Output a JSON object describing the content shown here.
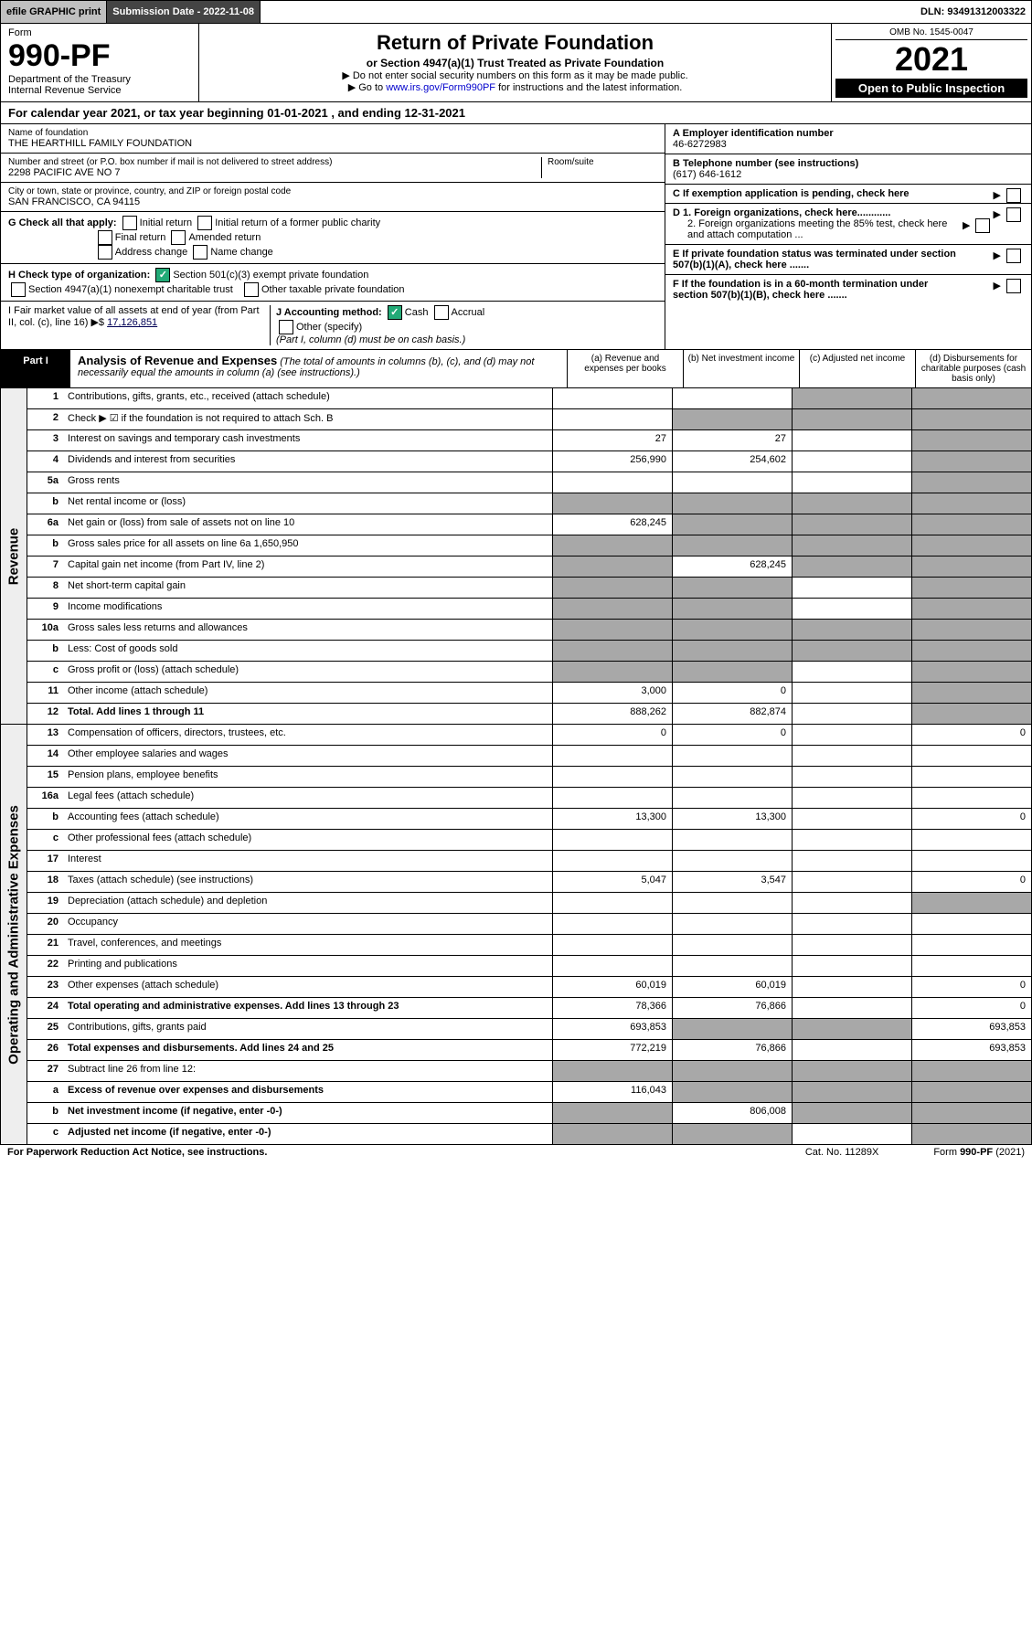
{
  "topbar": {
    "efile": "efile GRAPHIC print",
    "submission": "Submission Date - 2022-11-08",
    "dln": "DLN: 93491312003322"
  },
  "header": {
    "form_label": "Form",
    "form_num": "990-PF",
    "dept1": "Department of the Treasury",
    "dept2": "Internal Revenue Service",
    "title": "Return of Private Foundation",
    "sub1": "or Section 4947(a)(1) Trust Treated as Private Foundation",
    "sub2a": "▶ Do not enter social security numbers on this form as it may be made public.",
    "sub2b": "▶ Go to www.irs.gov/Form990PF for instructions and the latest information.",
    "omb": "OMB No. 1545-0047",
    "year": "2021",
    "open": "Open to Public Inspection"
  },
  "calyear": "For calendar year 2021, or tax year beginning 01-01-2021              , and ending 12-31-2021",
  "info": {
    "name_label": "Name of foundation",
    "name": "THE HEARTHILL FAMILY FOUNDATION",
    "addr_label": "Number and street (or P.O. box number if mail is not delivered to street address)",
    "addr": "2298 PACIFIC AVE NO 7",
    "room_label": "Room/suite",
    "city_label": "City or town, state or province, country, and ZIP or foreign postal code",
    "city": "SAN FRANCISCO, CA  94115",
    "A_label": "A Employer identification number",
    "A_val": "46-6272983",
    "B_label": "B Telephone number (see instructions)",
    "B_val": "(617) 646-1612",
    "C_label": "C If exemption application is pending, check here",
    "G_label": "G Check all that apply:",
    "G_opts": [
      "Initial return",
      "Initial return of a former public charity",
      "Final return",
      "Amended return",
      "Address change",
      "Name change"
    ],
    "D1": "D 1. Foreign organizations, check here............",
    "D2": "2. Foreign organizations meeting the 85% test, check here and attach computation ...",
    "H_label": "H Check type of organization:",
    "H1": "Section 501(c)(3) exempt private foundation",
    "H2": "Section 4947(a)(1) nonexempt charitable trust",
    "H3": "Other taxable private foundation",
    "E_label": "E If private foundation status was terminated under section 507(b)(1)(A), check here .......",
    "I_label": "I Fair market value of all assets at end of year (from Part II, col. (c), line 16) ▶$",
    "I_val": "17,126,851",
    "J_label": "J Accounting method:",
    "J_cash": "Cash",
    "J_accrual": "Accrual",
    "J_other": "Other (specify)",
    "J_note": "(Part I, column (d) must be on cash basis.)",
    "F_label": "F If the foundation is in a 60-month termination under section 507(b)(1)(B), check here ......."
  },
  "part1": {
    "label": "Part I",
    "title": "Analysis of Revenue and Expenses",
    "subtitle": "(The total of amounts in columns (b), (c), and (d) may not necessarily equal the amounts in column (a) (see instructions).)",
    "col_a": "(a) Revenue and expenses per books",
    "col_b": "(b) Net investment income",
    "col_c": "(c) Adjusted net income",
    "col_d": "(d) Disbursements for charitable purposes (cash basis only)"
  },
  "side": {
    "rev": "Revenue",
    "exp": "Operating and Administrative Expenses"
  },
  "rows": [
    {
      "n": "1",
      "d": "Contributions, gifts, grants, etc., received (attach schedule)",
      "a": "",
      "b": "",
      "c": "g",
      "dd": "g"
    },
    {
      "n": "2",
      "d": "Check ▶ ☑ if the foundation is not required to attach Sch. B",
      "dots": true,
      "a": "",
      "b": "g",
      "c": "g",
      "dd": "g"
    },
    {
      "n": "3",
      "d": "Interest on savings and temporary cash investments",
      "a": "27",
      "b": "27",
      "c": "",
      "dd": "g"
    },
    {
      "n": "4",
      "d": "Dividends and interest from securities",
      "dots": true,
      "a": "256,990",
      "b": "254,602",
      "c": "",
      "dd": "g"
    },
    {
      "n": "5a",
      "d": "Gross rents",
      "dots": true,
      "a": "",
      "b": "",
      "c": "",
      "dd": "g"
    },
    {
      "n": "b",
      "d": "Net rental income or (loss)",
      "a": "g",
      "b": "g",
      "c": "g",
      "dd": "g"
    },
    {
      "n": "6a",
      "d": "Net gain or (loss) from sale of assets not on line 10",
      "a": "628,245",
      "b": "g",
      "c": "g",
      "dd": "g"
    },
    {
      "n": "b",
      "d": "Gross sales price for all assets on line 6a           1,650,950",
      "a": "g",
      "b": "g",
      "c": "g",
      "dd": "g"
    },
    {
      "n": "7",
      "d": "Capital gain net income (from Part IV, line 2)",
      "dots": true,
      "a": "g",
      "b": "628,245",
      "c": "g",
      "dd": "g"
    },
    {
      "n": "8",
      "d": "Net short-term capital gain",
      "dots": true,
      "a": "g",
      "b": "g",
      "c": "",
      "dd": "g"
    },
    {
      "n": "9",
      "d": "Income modifications",
      "dots": true,
      "a": "g",
      "b": "g",
      "c": "",
      "dd": "g"
    },
    {
      "n": "10a",
      "d": "Gross sales less returns and allowances",
      "a": "g",
      "b": "g",
      "c": "g",
      "dd": "g"
    },
    {
      "n": "b",
      "d": "Less: Cost of goods sold",
      "dots": true,
      "a": "g",
      "b": "g",
      "c": "g",
      "dd": "g"
    },
    {
      "n": "c",
      "d": "Gross profit or (loss) (attach schedule)",
      "dots": true,
      "a": "g",
      "b": "g",
      "c": "",
      "dd": "g"
    },
    {
      "n": "11",
      "d": "Other income (attach schedule)",
      "dots": true,
      "a": "3,000",
      "b": "0",
      "c": "",
      "dd": "g"
    },
    {
      "n": "12",
      "d": "Total. Add lines 1 through 11",
      "dots": true,
      "bold": true,
      "a": "888,262",
      "b": "882,874",
      "c": "",
      "dd": "g"
    },
    {
      "n": "13",
      "d": "Compensation of officers, directors, trustees, etc.",
      "a": "0",
      "b": "0",
      "c": "",
      "dd": "0"
    },
    {
      "n": "14",
      "d": "Other employee salaries and wages",
      "dots": true,
      "a": "",
      "b": "",
      "c": "",
      "dd": ""
    },
    {
      "n": "15",
      "d": "Pension plans, employee benefits",
      "dots": true,
      "a": "",
      "b": "",
      "c": "",
      "dd": ""
    },
    {
      "n": "16a",
      "d": "Legal fees (attach schedule)",
      "dots": true,
      "a": "",
      "b": "",
      "c": "",
      "dd": ""
    },
    {
      "n": "b",
      "d": "Accounting fees (attach schedule)",
      "dots": true,
      "a": "13,300",
      "b": "13,300",
      "c": "",
      "dd": "0"
    },
    {
      "n": "c",
      "d": "Other professional fees (attach schedule)",
      "dots": true,
      "a": "",
      "b": "",
      "c": "",
      "dd": ""
    },
    {
      "n": "17",
      "d": "Interest",
      "dots": true,
      "a": "",
      "b": "",
      "c": "",
      "dd": ""
    },
    {
      "n": "18",
      "d": "Taxes (attach schedule) (see instructions)",
      "dots": true,
      "a": "5,047",
      "b": "3,547",
      "c": "",
      "dd": "0"
    },
    {
      "n": "19",
      "d": "Depreciation (attach schedule) and depletion",
      "dots": true,
      "a": "",
      "b": "",
      "c": "",
      "dd": "g"
    },
    {
      "n": "20",
      "d": "Occupancy",
      "dots": true,
      "a": "",
      "b": "",
      "c": "",
      "dd": ""
    },
    {
      "n": "21",
      "d": "Travel, conferences, and meetings",
      "dots": true,
      "a": "",
      "b": "",
      "c": "",
      "dd": ""
    },
    {
      "n": "22",
      "d": "Printing and publications",
      "dots": true,
      "a": "",
      "b": "",
      "c": "",
      "dd": ""
    },
    {
      "n": "23",
      "d": "Other expenses (attach schedule)",
      "dots": true,
      "a": "60,019",
      "b": "60,019",
      "c": "",
      "dd": "0"
    },
    {
      "n": "24",
      "d": "Total operating and administrative expenses. Add lines 13 through 23",
      "dots": true,
      "bold": true,
      "a": "78,366",
      "b": "76,866",
      "c": "",
      "dd": "0"
    },
    {
      "n": "25",
      "d": "Contributions, gifts, grants paid",
      "dots": true,
      "a": "693,853",
      "b": "g",
      "c": "g",
      "dd": "693,853"
    },
    {
      "n": "26",
      "d": "Total expenses and disbursements. Add lines 24 and 25",
      "bold": true,
      "a": "772,219",
      "b": "76,866",
      "c": "",
      "dd": "693,853"
    },
    {
      "n": "27",
      "d": "Subtract line 26 from line 12:",
      "a": "g",
      "b": "g",
      "c": "g",
      "dd": "g"
    },
    {
      "n": "a",
      "d": "Excess of revenue over expenses and disbursements",
      "bold": true,
      "a": "116,043",
      "b": "g",
      "c": "g",
      "dd": "g"
    },
    {
      "n": "b",
      "d": "Net investment income (if negative, enter -0-)",
      "bold": true,
      "a": "g",
      "b": "806,008",
      "c": "g",
      "dd": "g"
    },
    {
      "n": "c",
      "d": "Adjusted net income (if negative, enter -0-)",
      "dots": true,
      "bold": true,
      "a": "g",
      "b": "g",
      "c": "",
      "dd": "g"
    }
  ],
  "footer": {
    "left": "For Paperwork Reduction Act Notice, see instructions.",
    "mid": "Cat. No. 11289X",
    "right": "Form 990-PF (2021)"
  }
}
